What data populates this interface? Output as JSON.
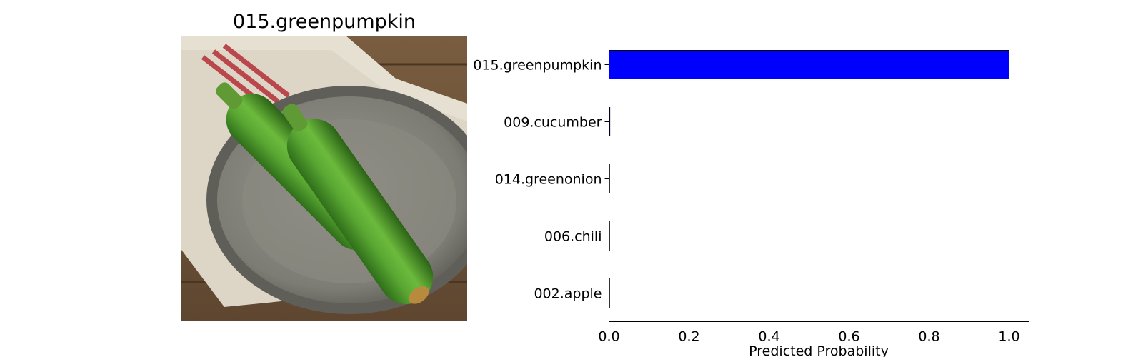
{
  "image_panel": {
    "title": "015.greenpumpkin",
    "colors": {
      "wood": "#6e5438",
      "towel": "#ddd6c6",
      "towel_stripe": "#b9474c",
      "plate": "#8d8c84",
      "cucumber": "#4f9a2c"
    }
  },
  "chart_data": {
    "type": "bar",
    "orientation": "horizontal",
    "title": "",
    "xlabel": "Predicted Probability",
    "ylabel": "",
    "categories": [
      "015.greenpumpkin",
      "009.cucumber",
      "014.greenonion",
      "006.chili",
      "002.apple"
    ],
    "values": [
      1.0,
      0.002,
      0.001,
      0.001,
      0.001
    ],
    "xlim": [
      0.0,
      1.05
    ],
    "xticks": [
      "0.0",
      "0.2",
      "0.4",
      "0.6",
      "0.8",
      "1.0"
    ],
    "grid": false,
    "bar_color": "#0000ff",
    "edge_color": "#000000"
  }
}
